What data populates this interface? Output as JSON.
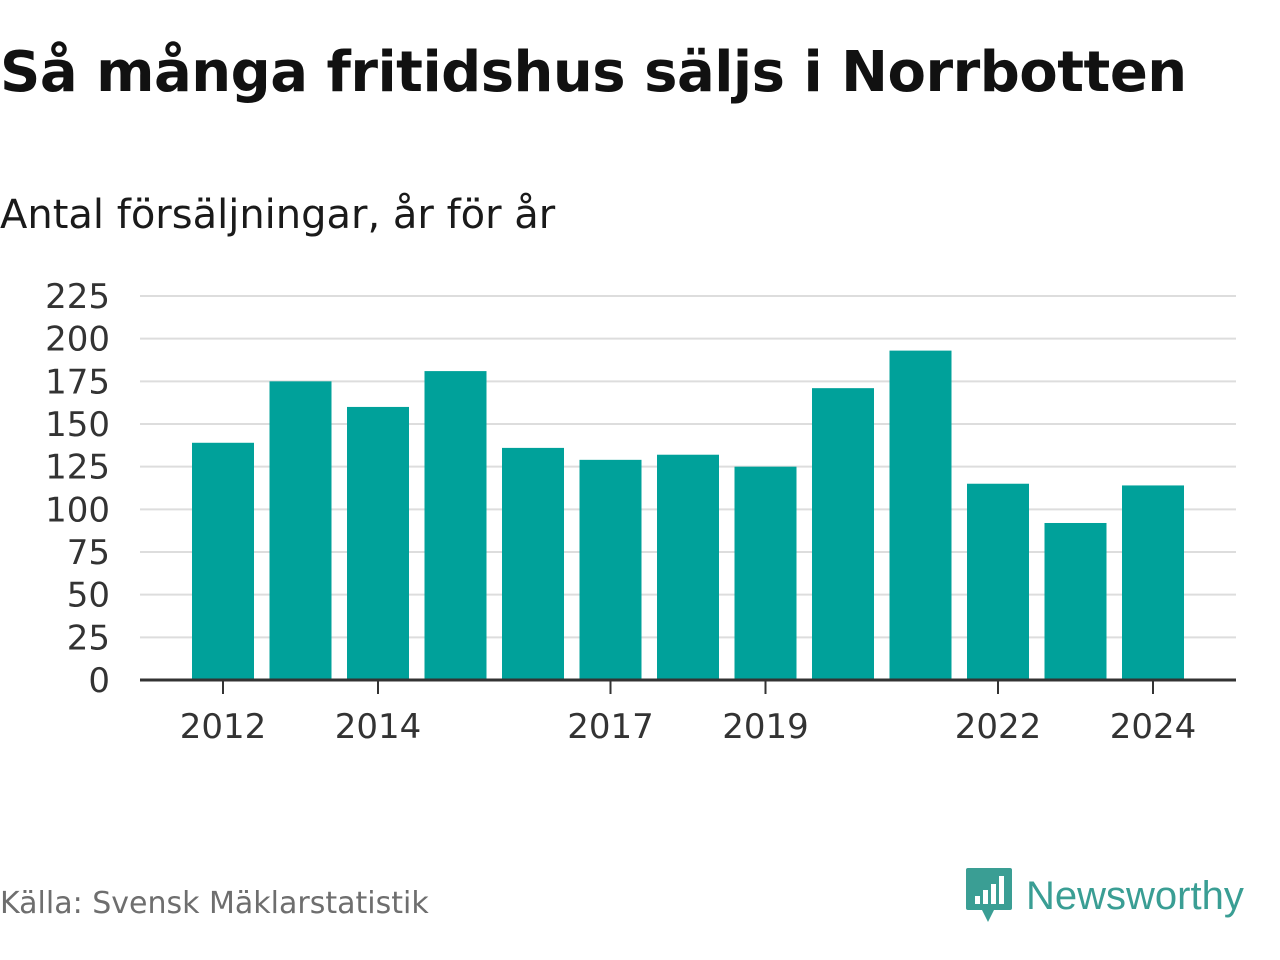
{
  "title": "Så många fritidshus säljs i Norrbotten",
  "subtitle": "Antal försäljningar, år för år",
  "source": "Källa: Svensk Mäklarstatistik",
  "brand": {
    "name": "Newsworthy",
    "icon": "newsworthy-logo-icon",
    "color": "#3a9e94"
  },
  "chart_data": {
    "type": "bar",
    "categories": [
      "2012",
      "2013",
      "2014",
      "2015",
      "2016",
      "2017",
      "2018",
      "2019",
      "2020",
      "2021",
      "2022",
      "2023",
      "2024"
    ],
    "values": [
      139,
      175,
      160,
      181,
      136,
      129,
      132,
      125,
      171,
      193,
      115,
      92,
      114
    ],
    "x_tick_labels": [
      "2012",
      "2014",
      "2017",
      "2019",
      "2022",
      "2024"
    ],
    "y_ticks": [
      0,
      25,
      50,
      75,
      100,
      125,
      150,
      175,
      200,
      225
    ],
    "ylim": [
      0,
      225
    ],
    "xlabel": "",
    "ylabel": "",
    "bar_color": "#00a19a",
    "grid": true,
    "legend": "none"
  }
}
